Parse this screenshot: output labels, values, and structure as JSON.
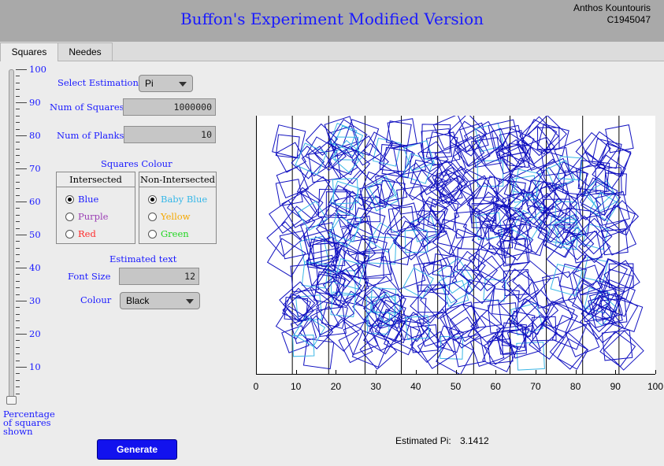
{
  "header": {
    "title": "Buffon's Experiment Modified Version",
    "author_name": "Anthos Kountouris",
    "author_id": "C1945047"
  },
  "tabs": [
    {
      "label": "Squares",
      "active": true
    },
    {
      "label": "Needes",
      "active": false
    }
  ],
  "slider": {
    "ticks": [
      "100",
      "90",
      "80",
      "70",
      "60",
      "50",
      "40",
      "30",
      "20",
      "10"
    ],
    "label": "Percentage of squares shown",
    "value_percent": 0
  },
  "controls": {
    "select_estimation_label": "Select Estimation",
    "select_estimation_value": "Pi",
    "num_squares_label": "Num of Squares",
    "num_squares_value": "1000000",
    "num_planks_label": "Num of Planks",
    "num_planks_value": "10",
    "squares_colour_label": "Squares Colour",
    "intersected": {
      "header": "Intersected",
      "options": [
        "Blue",
        "Purple",
        "Red"
      ],
      "selected": "Blue"
    },
    "non_intersected": {
      "header": "Non-Intersected",
      "options": [
        "Baby Blue",
        "Yellow",
        "Green"
      ],
      "selected": "Baby Blue"
    },
    "estimated_text_label": "Estimated text",
    "font_size_label": "Font Size",
    "font_size_value": "12",
    "colour_label": "Colour",
    "colour_value": "Black",
    "generate_label": "Generate"
  },
  "colors": {
    "title": "#1a1aff",
    "label": "#1a1aff",
    "blue": "#1a1aff",
    "purple": "#9b3fb5",
    "red": "#ff2a2a",
    "baby_blue": "#36b7e8",
    "yellow": "#f5a800",
    "green": "#22d622",
    "button": "#1212ee",
    "intersected_square": "#1010c0",
    "non_intersected_square": "#3ab6e6",
    "plank_line": "#000000"
  },
  "plot": {
    "x_ticks": [
      "0",
      "10",
      "20",
      "30",
      "40",
      "50",
      "60",
      "70",
      "80",
      "90",
      "100"
    ],
    "plank_lines_x": [
      9.1,
      18.2,
      27.3,
      36.4,
      45.5,
      54.5,
      63.6,
      72.7,
      81.8,
      90.9
    ]
  },
  "result": {
    "label": "Estimated Pi:",
    "value": "3.1412"
  }
}
